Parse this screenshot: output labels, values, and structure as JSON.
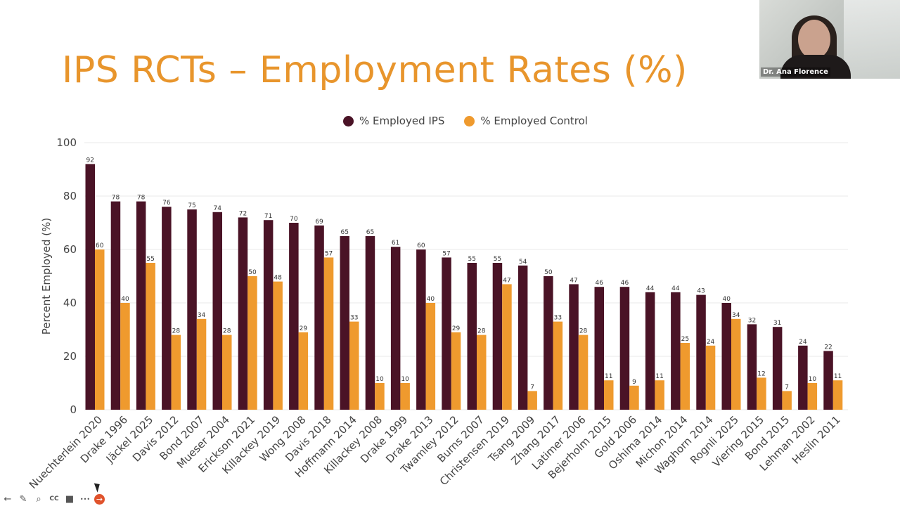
{
  "slide": {
    "title": "IPS RCTs – Employment Rates (%)"
  },
  "legend": {
    "ips_label": "% Employed IPS",
    "control_label": "% Employed Control"
  },
  "colors": {
    "ips": "#4a1326",
    "control": "#ef9a2e",
    "title": "#e8952c",
    "grid": "#e9e9e9"
  },
  "webcam": {
    "name": "Dr. Ana Florence"
  },
  "toolbar": {
    "icons": [
      "back-arrow-icon",
      "pen-icon",
      "search-icon",
      "cc-icon",
      "camera-icon",
      "more-icon",
      "next-arrow-icon"
    ],
    "back": "←",
    "pen": "✎",
    "search": "⌕",
    "cc": "CC",
    "camera": "■",
    "more": "•••",
    "next": "→"
  },
  "chart_data": {
    "type": "bar",
    "ylabel": "Percent Employed (%)",
    "ylim": [
      0,
      100
    ],
    "yticks": [
      0,
      20,
      40,
      60,
      80,
      100
    ],
    "grid": true,
    "legend_position": "top-center",
    "categories": [
      "Nuechterlein 2020",
      "Drake 1996",
      "Jäckel 2025",
      "Davis 2012",
      "Bond 2007",
      "Mueser 2004",
      "Erickson 2021",
      "Killackey 2019",
      "Wong 2008",
      "Davis 2018",
      "Hoffmann 2014",
      "Killackey 2008",
      "Drake 1999",
      "Drake 2013",
      "Twamley 2012",
      "Burns 2007",
      "Christensen 2019",
      "Tsang 2009",
      "Zhang 2017",
      "Latimer 2006",
      "Bejerholm 2015",
      "Gold 2006",
      "Oshima 2014",
      "Michon 2014",
      "Waghorn 2014",
      "Rognli 2025",
      "Viering 2015",
      "Bond 2015",
      "Lehman 2002",
      "Heslin 2011"
    ],
    "series": [
      {
        "name": "% Employed IPS",
        "values": [
          92,
          78,
          78,
          76,
          75,
          74,
          72,
          71,
          70,
          69,
          65,
          65,
          61,
          60,
          57,
          55,
          55,
          54,
          50,
          47,
          46,
          46,
          44,
          44,
          43,
          40,
          32,
          31,
          24,
          22
        ]
      },
      {
        "name": "% Employed Control",
        "values": [
          60,
          40,
          55,
          28,
          34,
          28,
          50,
          48,
          29,
          57,
          33,
          10,
          10,
          40,
          29,
          28,
          47,
          7,
          33,
          28,
          11,
          9,
          11,
          25,
          24,
          34,
          12,
          7,
          10,
          11
        ]
      }
    ]
  }
}
